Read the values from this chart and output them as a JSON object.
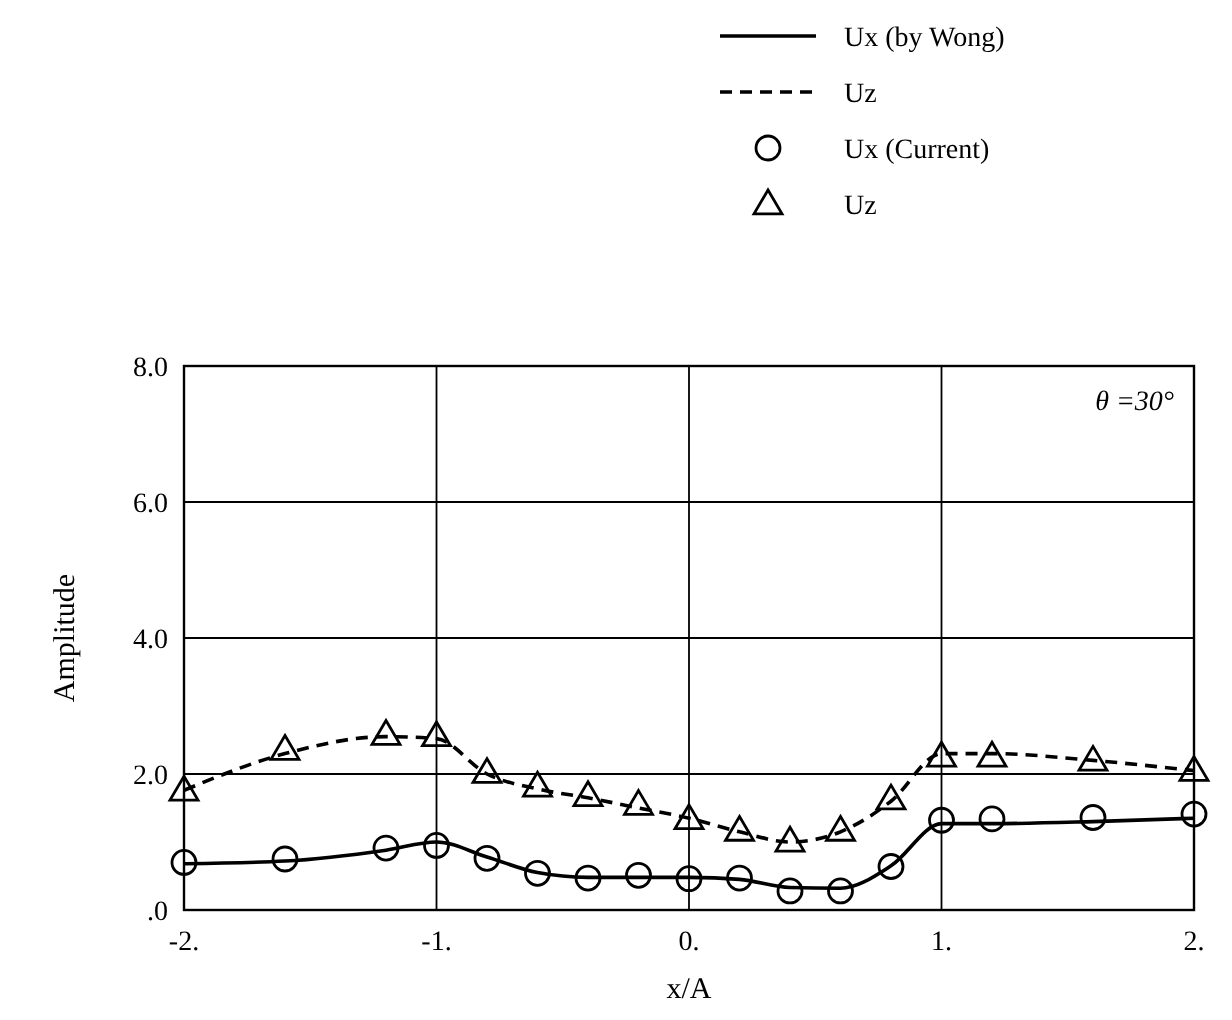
{
  "chart_data": {
    "type": "line",
    "xlabel": "x/A",
    "ylabel": "Amplitude",
    "annotations": [
      "θ =30°"
    ],
    "xlim": [
      -2,
      2
    ],
    "ylim": [
      0,
      8
    ],
    "xticks": [
      {
        "value": -2,
        "label": "-2."
      },
      {
        "value": -1,
        "label": "-1."
      },
      {
        "value": 0,
        "label": "0."
      },
      {
        "value": 1,
        "label": "1."
      },
      {
        "value": 2,
        "label": "2."
      }
    ],
    "yticks": [
      {
        "value": 0,
        "label": ".0"
      },
      {
        "value": 2,
        "label": "2.0"
      },
      {
        "value": 4,
        "label": "4.0"
      },
      {
        "value": 6,
        "label": "6.0"
      },
      {
        "value": 8,
        "label": "8.0"
      }
    ],
    "grid": true,
    "legend": "top right",
    "series": [
      {
        "name": "Ux (by Wong)",
        "color": "#000000",
        "line_style": "solid",
        "marker": "none",
        "x": [
          -2,
          -1.6,
          -1.2,
          -1,
          -0.8,
          -0.6,
          -0.4,
          -0.2,
          0,
          0.2,
          0.4,
          0.6,
          0.8,
          1,
          1.2,
          1.6,
          2
        ],
        "values": [
          0.68,
          0.72,
          0.88,
          1.0,
          0.78,
          0.55,
          0.48,
          0.48,
          0.48,
          0.45,
          0.33,
          0.32,
          0.65,
          1.27,
          1.27,
          1.3,
          1.35
        ]
      },
      {
        "name": "Uz",
        "color": "#000000",
        "line_style": "dashed",
        "marker": "none",
        "x": [
          -2,
          -1.6,
          -1.2,
          -1,
          -0.8,
          -0.6,
          -0.4,
          -0.2,
          0,
          0.2,
          0.4,
          0.6,
          0.8,
          1,
          1.2,
          1.6,
          2
        ],
        "values": [
          1.76,
          2.3,
          2.55,
          2.52,
          2.0,
          1.78,
          1.65,
          1.5,
          1.35,
          1.15,
          1.0,
          1.15,
          1.6,
          2.3,
          2.3,
          2.2,
          2.05
        ]
      },
      {
        "name": "Ux (Current)",
        "type": "scatter",
        "color": "#000000",
        "marker": "circle",
        "x": [
          -2,
          -1.6,
          -1.2,
          -1,
          -0.8,
          -0.6,
          -0.4,
          -0.2,
          0,
          0.2,
          0.4,
          0.6,
          0.8,
          1,
          1.2,
          1.6,
          2
        ],
        "values": [
          0.7,
          0.75,
          0.91,
          0.95,
          0.76,
          0.54,
          0.47,
          0.51,
          0.46,
          0.47,
          0.28,
          0.28,
          0.64,
          1.32,
          1.34,
          1.36,
          1.41
        ]
      },
      {
        "name": "Uz",
        "type": "scatter",
        "color": "#000000",
        "marker": "triangle",
        "x": [
          -2,
          -1.6,
          -1.2,
          -1,
          -0.8,
          -0.6,
          -0.4,
          -0.2,
          0,
          0.2,
          0.4,
          0.6,
          0.8,
          1,
          1.2,
          1.6,
          2
        ],
        "values": [
          1.76,
          2.36,
          2.58,
          2.56,
          2.02,
          1.82,
          1.68,
          1.55,
          1.34,
          1.17,
          1.01,
          1.17,
          1.63,
          2.26,
          2.26,
          2.2,
          2.05
        ]
      }
    ]
  }
}
